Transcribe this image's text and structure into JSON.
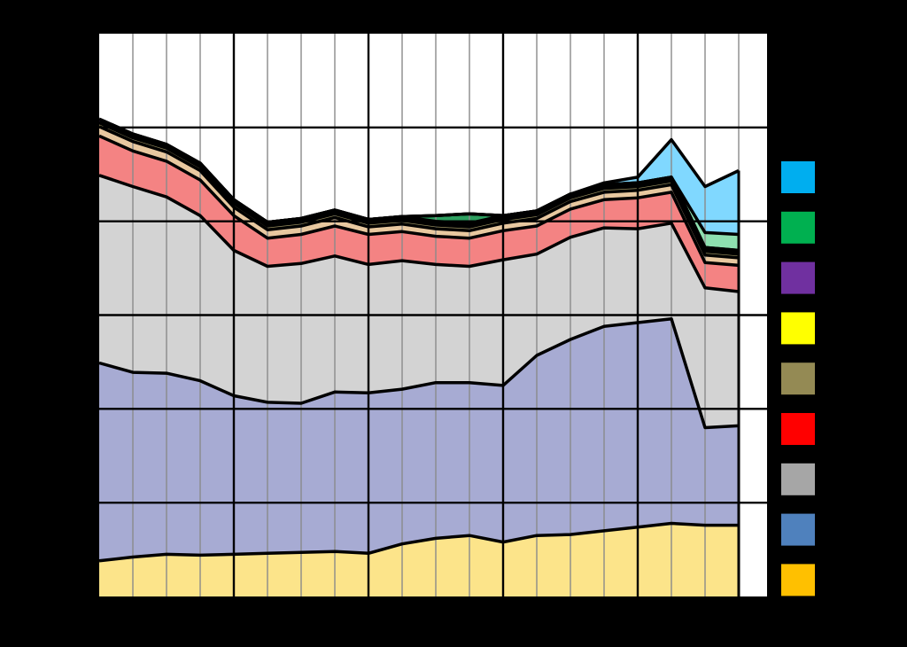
{
  "chart_data": {
    "type": "area",
    "stacked": true,
    "title": "",
    "xlabel": "",
    "ylabel": "",
    "x_count": 20,
    "ylim": [
      0,
      6
    ],
    "grid": true,
    "legend_position": "right",
    "series": [
      {
        "color": "#FCE48A",
        "values": [
          0.38,
          0.42,
          0.45,
          0.44,
          0.45,
          0.46,
          0.47,
          0.48,
          0.46,
          0.56,
          0.62,
          0.65,
          0.58,
          0.65,
          0.66,
          0.7,
          0.74,
          0.78,
          0.76,
          0.76
        ]
      },
      {
        "color": "#A7ABD3",
        "values": [
          2.11,
          1.97,
          1.93,
          1.86,
          1.69,
          1.61,
          1.59,
          1.7,
          1.71,
          1.65,
          1.66,
          1.63,
          1.67,
          1.92,
          2.08,
          2.18,
          2.18,
          2.18,
          1.04,
          1.06
        ]
      },
      {
        "color": "#D3D3D3",
        "values": [
          2.0,
          1.98,
          1.88,
          1.76,
          1.55,
          1.45,
          1.49,
          1.45,
          1.37,
          1.37,
          1.26,
          1.24,
          1.34,
          1.08,
          1.09,
          1.05,
          1.0,
          1.02,
          1.49,
          1.43
        ]
      },
      {
        "color": "#F48383",
        "values": [
          0.42,
          0.38,
          0.38,
          0.38,
          0.37,
          0.3,
          0.31,
          0.32,
          0.32,
          0.31,
          0.3,
          0.3,
          0.31,
          0.3,
          0.3,
          0.3,
          0.33,
          0.33,
          0.27,
          0.28
        ]
      },
      {
        "color": "#E8C8A0",
        "values": [
          0.1,
          0.1,
          0.1,
          0.1,
          0.09,
          0.09,
          0.09,
          0.09,
          0.08,
          0.08,
          0.08,
          0.08,
          0.08,
          0.08,
          0.08,
          0.08,
          0.08,
          0.08,
          0.08,
          0.08
        ]
      },
      {
        "color": "#9A9060",
        "values": [
          0.04,
          0.04,
          0.04,
          0.04,
          0.04,
          0.04,
          0.04,
          0.04,
          0.04,
          0.04,
          0.04,
          0.04,
          0.04,
          0.04,
          0.04,
          0.04,
          0.04,
          0.04,
          0.04,
          0.04
        ]
      },
      {
        "color": "#FFFF00",
        "values": [
          0.01,
          0.01,
          0.01,
          0.01,
          0.01,
          0.01,
          0.01,
          0.01,
          0.01,
          0.01,
          0.01,
          0.01,
          0.01,
          0.01,
          0.01,
          0.01,
          0.01,
          0.01,
          0.01,
          0.01
        ]
      },
      {
        "color": "#7B3FA0",
        "values": [
          0.03,
          0.03,
          0.03,
          0.03,
          0.03,
          0.03,
          0.03,
          0.03,
          0.03,
          0.03,
          0.03,
          0.03,
          0.03,
          0.03,
          0.03,
          0.03,
          0.03,
          0.03,
          0.03,
          0.03
        ]
      },
      {
        "color": "#2EA060",
        "values": [
          0.0,
          0.0,
          0.0,
          0.0,
          0.0,
          0.0,
          0.0,
          0.0,
          0.0,
          0.0,
          0.06,
          0.1,
          0.0,
          0.0,
          0.0,
          0.0,
          0.0,
          0.0,
          0.0,
          0.0
        ]
      },
      {
        "color": "#8EE0B0",
        "values": [
          0.0,
          0.0,
          0.0,
          0.0,
          0.0,
          0.0,
          0.0,
          0.0,
          0.0,
          0.0,
          0.0,
          0.0,
          0.0,
          0.0,
          0.0,
          0.0,
          0.0,
          0.0,
          0.16,
          0.17
        ]
      },
      {
        "color": "#80D8FF",
        "values": [
          0.0,
          0.0,
          0.0,
          0.0,
          0.0,
          0.0,
          0.0,
          0.0,
          0.0,
          0.0,
          0.0,
          0.0,
          0.0,
          0.0,
          0.0,
          0.02,
          0.06,
          0.4,
          0.49,
          0.68
        ]
      }
    ],
    "legend": [
      {
        "color": "#00AEEF"
      },
      {
        "color": "#00B050"
      },
      {
        "color": "#7030A0"
      },
      {
        "color": "#FFFF00"
      },
      {
        "color": "#948A54"
      },
      {
        "color": "#FF0000"
      },
      {
        "color": "#A6A6A6"
      },
      {
        "color": "#4F81BD"
      },
      {
        "color": "#FFC000"
      }
    ]
  }
}
